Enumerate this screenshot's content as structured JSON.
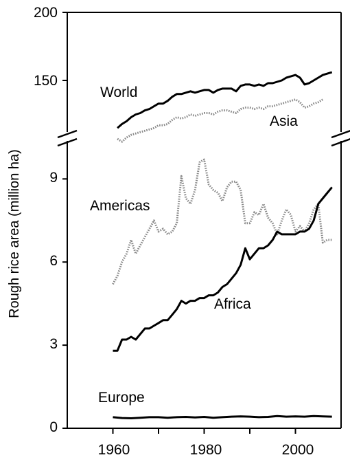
{
  "chart_data": {
    "type": "line",
    "title": "",
    "xlabel": "",
    "ylabel": "Rough rice area (million ha)",
    "xlim": [
      1950,
      2010
    ],
    "x_ticks": [
      "1960",
      "1980",
      "2000"
    ],
    "broken_axis": true,
    "lower_panel": {
      "ylim": [
        0,
        11
      ],
      "y_ticks": [
        "0",
        "3",
        "6",
        "9"
      ]
    },
    "upper_panel": {
      "ylim": [
        115,
        200
      ],
      "y_ticks": [
        "150",
        "200"
      ]
    },
    "grid": false,
    "legend": "none (series labeled directly on chart)",
    "series": [
      {
        "name": "World",
        "panel": "upper",
        "style": "solid",
        "color": "#000000",
        "x": [
          1961,
          1962,
          1963,
          1964,
          1965,
          1966,
          1967,
          1968,
          1969,
          1970,
          1971,
          1972,
          1973,
          1974,
          1975,
          1976,
          1977,
          1978,
          1979,
          1980,
          1981,
          1982,
          1983,
          1984,
          1985,
          1986,
          1987,
          1988,
          1989,
          1990,
          1991,
          1992,
          1993,
          1994,
          1995,
          1996,
          1997,
          1998,
          1999,
          2000,
          2001,
          2002,
          2003,
          2004,
          2005,
          2006,
          2007,
          2008
        ],
        "values": [
          115,
          118,
          120,
          123,
          125,
          126,
          128,
          129,
          131,
          133,
          133,
          135,
          138,
          140,
          140,
          141,
          142,
          141,
          142,
          143,
          143,
          141,
          143,
          144,
          144,
          144,
          142,
          146,
          147,
          147,
          146,
          147,
          146,
          148,
          148,
          149,
          150,
          152,
          153,
          154,
          152,
          147,
          148,
          150,
          152,
          154,
          155,
          156
        ]
      },
      {
        "name": "Asia",
        "panel": "upper",
        "style": "dotted",
        "color": "#888888",
        "x": [
          1961,
          1962,
          1963,
          1964,
          1965,
          1966,
          1967,
          1968,
          1969,
          1970,
          1971,
          1972,
          1973,
          1974,
          1975,
          1976,
          1977,
          1978,
          1979,
          1980,
          1981,
          1982,
          1983,
          1984,
          1985,
          1986,
          1987,
          1988,
          1989,
          1990,
          1991,
          1992,
          1993,
          1994,
          1995,
          1996,
          1997,
          1998,
          1999,
          2000,
          2001,
          2002,
          2003,
          2004,
          2005,
          2006
        ],
        "values": [
          107,
          105,
          108,
          110,
          111,
          112,
          113,
          114,
          115,
          117,
          117,
          118,
          121,
          123,
          122,
          123,
          125,
          124,
          125,
          126,
          126,
          125,
          127,
          128,
          128,
          127,
          126,
          129,
          130,
          130,
          129,
          130,
          129,
          131,
          131,
          132,
          133,
          134,
          135,
          136,
          134,
          130,
          131,
          133,
          134,
          136
        ]
      },
      {
        "name": "Americas",
        "panel": "lower",
        "style": "dotted",
        "color": "#888888",
        "x": [
          1960,
          1961,
          1962,
          1963,
          1964,
          1965,
          1966,
          1967,
          1968,
          1969,
          1970,
          1971,
          1972,
          1973,
          1974,
          1975,
          1976,
          1977,
          1978,
          1979,
          1980,
          1981,
          1982,
          1983,
          1984,
          1985,
          1986,
          1987,
          1988,
          1989,
          1990,
          1991,
          1992,
          1993,
          1994,
          1995,
          1996,
          1997,
          1998,
          1999,
          2000,
          2001,
          2002,
          2003,
          2004,
          2005,
          2006,
          2007,
          2008
        ],
        "values": [
          5.2,
          5.5,
          6.0,
          6.3,
          6.8,
          6.3,
          6.6,
          6.9,
          7.2,
          7.5,
          7.1,
          7.2,
          7.0,
          7.1,
          7.4,
          9.1,
          8.3,
          8.1,
          8.6,
          9.6,
          9.7,
          8.8,
          8.6,
          8.5,
          8.2,
          8.7,
          8.9,
          8.9,
          8.6,
          7.4,
          7.4,
          7.8,
          7.7,
          8.1,
          7.6,
          7.4,
          7.0,
          7.5,
          7.9,
          7.7,
          7.1,
          7.3,
          7.1,
          7.4,
          7.9,
          8.1,
          6.7,
          6.8,
          6.8
        ]
      },
      {
        "name": "Africa",
        "panel": "lower",
        "style": "solid",
        "color": "#000000",
        "x": [
          1960,
          1961,
          1962,
          1963,
          1964,
          1965,
          1966,
          1967,
          1968,
          1969,
          1970,
          1971,
          1972,
          1973,
          1974,
          1975,
          1976,
          1977,
          1978,
          1979,
          1980,
          1981,
          1982,
          1983,
          1984,
          1985,
          1986,
          1987,
          1988,
          1989,
          1990,
          1991,
          1992,
          1993,
          1994,
          1995,
          1996,
          1997,
          1998,
          1999,
          2000,
          2001,
          2002,
          2003,
          2004,
          2005,
          2006,
          2007,
          2008
        ],
        "values": [
          2.8,
          2.8,
          3.2,
          3.2,
          3.3,
          3.2,
          3.4,
          3.6,
          3.6,
          3.7,
          3.8,
          3.9,
          3.9,
          4.1,
          4.3,
          4.6,
          4.5,
          4.6,
          4.6,
          4.7,
          4.7,
          4.8,
          4.8,
          4.9,
          5.1,
          5.2,
          5.4,
          5.6,
          5.9,
          6.5,
          6.1,
          6.3,
          6.5,
          6.5,
          6.6,
          6.8,
          7.1,
          7.0,
          7.0,
          7.0,
          7.0,
          7.1,
          7.1,
          7.2,
          7.5,
          8.1,
          8.3,
          8.5,
          8.7
        ]
      },
      {
        "name": "Europe",
        "panel": "lower",
        "style": "solid",
        "color": "#000000",
        "x": [
          1960,
          1962,
          1964,
          1966,
          1968,
          1970,
          1972,
          1974,
          1976,
          1978,
          1980,
          1982,
          1984,
          1986,
          1988,
          1990,
          1992,
          1994,
          1996,
          1998,
          2000,
          2002,
          2004,
          2006,
          2008
        ],
        "values": [
          0.4,
          0.37,
          0.36,
          0.38,
          0.4,
          0.4,
          0.38,
          0.4,
          0.41,
          0.39,
          0.41,
          0.38,
          0.4,
          0.42,
          0.43,
          0.42,
          0.4,
          0.41,
          0.44,
          0.42,
          0.43,
          0.42,
          0.44,
          0.43,
          0.42
        ]
      }
    ]
  }
}
